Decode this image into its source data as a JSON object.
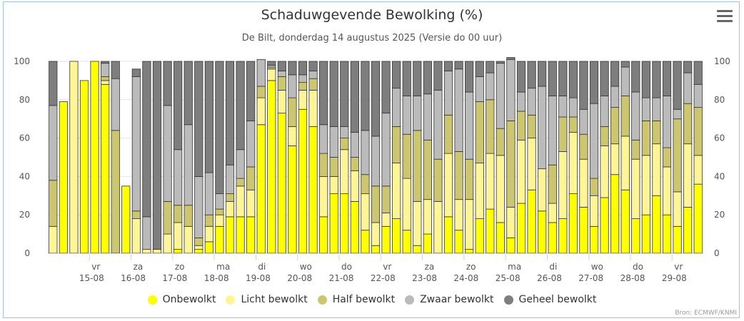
{
  "header": {
    "title": "Schaduwgevende Bewolking (%)",
    "subtitle": "De Bilt, donderdag 14 augustus 2025 (Versie do 00 uur)"
  },
  "credits": "Bron: ECMWF/KNMI",
  "chart_data": {
    "type": "bar",
    "stacked": true,
    "title": "Schaduwgevende Bewolking (%)",
    "subtitle": "De Bilt, donderdag 14 augustus 2025 (Versie do 00 uur)",
    "ylim": [
      0,
      100
    ],
    "yticks": [
      "0",
      "20",
      "40",
      "60",
      "80",
      "100"
    ],
    "xticks": [
      {
        "day": "vr",
        "date": "15-08",
        "index": 4
      },
      {
        "day": "za",
        "date": "16-08",
        "index": 8
      },
      {
        "day": "zo",
        "date": "17-08",
        "index": 12
      },
      {
        "day": "ma",
        "date": "18-08",
        "index": 16
      },
      {
        "day": "di",
        "date": "19-08",
        "index": 20
      },
      {
        "day": "wo",
        "date": "20-08",
        "index": 24
      },
      {
        "day": "do",
        "date": "21-08",
        "index": 28
      },
      {
        "day": "vr",
        "date": "22-08",
        "index": 32
      },
      {
        "day": "za",
        "date": "23-08",
        "index": 36
      },
      {
        "day": "zo",
        "date": "24-08",
        "index": 40
      },
      {
        "day": "ma",
        "date": "25-08",
        "index": 44
      },
      {
        "day": "di",
        "date": "26-08",
        "index": 48
      },
      {
        "day": "wo",
        "date": "27-08",
        "index": 52
      },
      {
        "day": "do",
        "date": "28-08",
        "index": 56
      },
      {
        "day": "vr",
        "date": "29-08",
        "index": 60
      }
    ],
    "legend_position": "bottom-center",
    "series": [
      {
        "name": "Onbewolkt",
        "color": "#ffff00",
        "values": [
          0,
          79,
          0,
          90,
          100,
          88,
          0,
          35,
          0,
          0,
          0,
          0,
          2,
          0,
          2,
          6,
          14,
          19,
          19,
          19,
          67,
          90,
          73,
          56,
          75,
          66,
          19,
          31,
          31,
          27,
          12,
          4,
          14,
          18,
          12,
          4,
          10,
          0,
          19,
          12,
          2,
          18,
          23,
          16,
          8,
          26,
          33,
          22,
          16,
          18,
          31,
          24,
          14,
          29,
          41,
          33,
          18,
          20,
          30,
          20,
          14,
          24,
          36
        ]
      },
      {
        "name": "Licht bewolkt",
        "color": "#fff597",
        "values": [
          14,
          0,
          100,
          0,
          0,
          2,
          0,
          0,
          18,
          2,
          2,
          10,
          14,
          14,
          2,
          8,
          6,
          8,
          16,
          14,
          14,
          6,
          12,
          10,
          10,
          19,
          21,
          9,
          23,
          16,
          19,
          12,
          7,
          29,
          27,
          23,
          18,
          27,
          33,
          16,
          26,
          29,
          29,
          35,
          16,
          33,
          27,
          22,
          10,
          35,
          32,
          25,
          16,
          27,
          16,
          28,
          31,
          31,
          27,
          25,
          18,
          33,
          15
        ]
      },
      {
        "name": "Half bewolkt",
        "color": "#cdc670",
        "values": [
          24,
          0,
          0,
          0,
          0,
          2,
          64,
          0,
          4,
          0,
          0,
          17,
          9,
          11,
          4,
          6,
          3,
          4,
          4,
          12,
          6,
          1,
          7,
          15,
          4,
          6,
          12,
          10,
          6,
          7,
          10,
          19,
          14,
          19,
          23,
          37,
          31,
          22,
          20,
          25,
          21,
          32,
          28,
          14,
          45,
          15,
          12,
          0,
          20,
          18,
          8,
          13,
          9,
          10,
          19,
          21,
          10,
          18,
          12,
          10,
          38,
          21,
          25
        ]
      },
      {
        "name": "Zwaar bewolkt",
        "color": "#bbbbbb",
        "values": [
          39,
          0,
          0,
          0,
          0,
          7,
          27,
          0,
          70,
          17,
          0,
          50,
          29,
          42,
          32,
          22,
          8,
          15,
          15,
          24,
          14,
          1,
          3,
          12,
          4,
          4,
          15,
          16,
          6,
          13,
          23,
          26,
          38,
          20,
          20,
          18,
          24,
          36,
          23,
          43,
          35,
          13,
          14,
          34,
          32,
          10,
          14,
          43,
          36,
          11,
          10,
          13,
          39,
          16,
          11,
          15,
          25,
          12,
          12,
          27,
          5,
          16,
          12
        ]
      },
      {
        "name": "Geheel bewolkt",
        "color": "#7e7e7e",
        "values": [
          23,
          0,
          0,
          0,
          0,
          1,
          9,
          0,
          4,
          81,
          98,
          23,
          46,
          33,
          60,
          58,
          69,
          54,
          46,
          31,
          0,
          2,
          5,
          7,
          7,
          5,
          33,
          34,
          34,
          37,
          36,
          39,
          27,
          14,
          18,
          18,
          17,
          15,
          5,
          4,
          16,
          8,
          6,
          1,
          1,
          16,
          14,
          13,
          18,
          18,
          19,
          25,
          22,
          18,
          13,
          3,
          16,
          19,
          19,
          18,
          25,
          6,
          12
        ]
      }
    ]
  }
}
